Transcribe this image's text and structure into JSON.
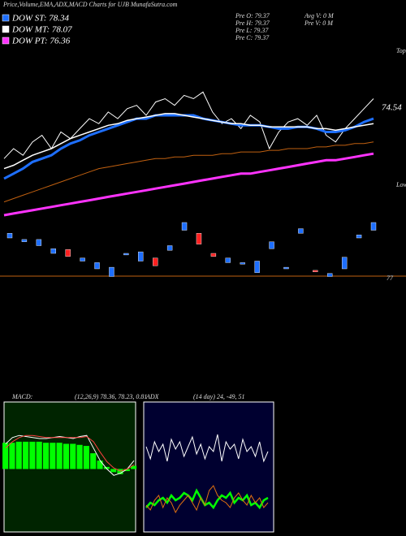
{
  "header": {
    "title": "Price,Volume,EMA,ADX,MACD Charts for UJB MunafaSutra.com"
  },
  "info": {
    "col1": [
      "Pre O: 79.37",
      "Pre H: 79.37",
      "Pre L: 79.37",
      "Pre C: 79.37"
    ],
    "col2": [
      "Avg V: 0 M",
      "Pre V: 0 M"
    ]
  },
  "chart_data": [
    {
      "type": "line",
      "ylim": [
        0,
        100
      ],
      "last_label": "74.54",
      "tops": "Tops",
      "lows": "Lows",
      "series": [
        {
          "color": "#ffffff",
          "width": 1,
          "values": [
            34,
            40,
            36,
            44,
            48,
            40,
            50,
            46,
            52,
            58,
            55,
            62,
            58,
            64,
            66,
            60,
            68,
            70,
            66,
            72,
            70,
            74,
            62,
            55,
            58,
            52,
            60,
            56,
            40,
            50,
            56,
            58,
            54,
            60,
            48,
            44,
            52,
            58,
            64,
            70
          ]
        },
        {
          "name": "DOW ST: 78.34",
          "color": "#1e6fff",
          "width": 3,
          "values": [
            22,
            25,
            28,
            32,
            34,
            36,
            40,
            43,
            45,
            48,
            50,
            52,
            54,
            56,
            58,
            58,
            60,
            60,
            60,
            60,
            60,
            58,
            57,
            56,
            55,
            54,
            54,
            54,
            53,
            52,
            52,
            53,
            53,
            52,
            50,
            50,
            51,
            53,
            56,
            58
          ]
        },
        {
          "name": "DOW MT: 78.07",
          "color": "#ffffff",
          "width": 1.5,
          "values": [
            28,
            30,
            33,
            36,
            38,
            40,
            43,
            46,
            48,
            50,
            52,
            54,
            55,
            57,
            58,
            59,
            60,
            61,
            61,
            60,
            59,
            58,
            57,
            56,
            55,
            55,
            54,
            54,
            53,
            53,
            53,
            53,
            53,
            52,
            52,
            51,
            52,
            53,
            54,
            55
          ]
        },
        {
          "color": "#c06010",
          "width": 1,
          "values": [
            8,
            10,
            12,
            14,
            16,
            18,
            20,
            22,
            24,
            26,
            28,
            29,
            30,
            31,
            32,
            33,
            34,
            34,
            35,
            35,
            36,
            36,
            36,
            37,
            37,
            38,
            38,
            38,
            39,
            39,
            40,
            40,
            40,
            41,
            41,
            42,
            42,
            43,
            43,
            44
          ]
        },
        {
          "name": "DOW PT: 76.36",
          "color": "#ff33ff",
          "width": 3,
          "values": [
            0,
            1,
            2,
            3,
            4,
            5,
            6,
            7,
            8,
            9,
            10,
            11,
            12,
            13,
            14,
            15,
            16,
            17,
            18,
            19,
            20,
            21,
            22,
            23,
            24,
            25,
            25,
            26,
            27,
            28,
            29,
            30,
            31,
            32,
            33,
            33,
            34,
            35,
            36,
            37
          ]
        }
      ]
    },
    {
      "type": "candlestick",
      "ylim": [
        0,
        100
      ],
      "up_color": "#1e6fff",
      "down_color": "#ff2020",
      "level_label": "77",
      "open": [
        60,
        55,
        50,
        40,
        45,
        30,
        20,
        10,
        38,
        30,
        34,
        44,
        70,
        66,
        40,
        28,
        26,
        15,
        46,
        20,
        66,
        18,
        10,
        20,
        60,
        70
      ],
      "close": [
        66,
        58,
        58,
        46,
        36,
        34,
        28,
        22,
        40,
        42,
        24,
        50,
        80,
        52,
        36,
        34,
        28,
        30,
        55,
        22,
        72,
        16,
        14,
        35,
        64,
        80
      ]
    },
    {
      "type": "macd",
      "title": "MACD:",
      "subtitle": "(12,26,9) 78.36, 78.23, 0.81",
      "ylim": [
        -6,
        6
      ],
      "hist_color": "#00ff00",
      "histogram": [
        2.5,
        2.5,
        2.6,
        2.6,
        2.6,
        2.6,
        2.5,
        2.5,
        2.5,
        2.4,
        2.4,
        2.3,
        2.2,
        1.5,
        0.8,
        0.2,
        -0.3,
        -0.5,
        -0.2,
        0.3
      ],
      "series": [
        {
          "color": "#ffffff",
          "values": [
            2.4,
            3,
            3.2,
            3.1,
            3,
            2.9,
            2.9,
            3,
            3.1,
            3,
            2.9,
            3.1,
            3.2,
            2,
            0.8,
            0,
            -0.6,
            -0.4,
            0,
            0.8
          ]
        },
        {
          "color": "#ff4040",
          "values": [
            2,
            2.6,
            3,
            3.2,
            3.2,
            3.1,
            3,
            3,
            3,
            3,
            3,
            3,
            3.1,
            2.6,
            1.6,
            0.7,
            0.1,
            -0.2,
            0,
            0.4
          ]
        }
      ]
    },
    {
      "type": "adx",
      "title": "ADX",
      "subtitle": "(14 day) 24, -49, 51",
      "ylim": [
        0,
        100
      ],
      "series": [
        {
          "color": "#ffffff",
          "width": 1,
          "values": [
            70,
            60,
            74,
            66,
            72,
            58,
            76,
            68,
            74,
            62,
            70,
            78,
            64,
            72,
            60,
            70,
            66,
            80,
            58,
            74,
            68,
            72,
            60,
            76,
            66,
            70,
            62,
            74,
            58,
            66
          ]
        },
        {
          "color": "#00ff00",
          "width": 2.5,
          "values": [
            20,
            24,
            22,
            26,
            28,
            24,
            30,
            26,
            28,
            32,
            30,
            26,
            34,
            28,
            22,
            24,
            20,
            26,
            30,
            28,
            32,
            24,
            28,
            26,
            30,
            22,
            24,
            20,
            26,
            28
          ]
        },
        {
          "color": "#e07010",
          "width": 1,
          "values": [
            22,
            18,
            26,
            30,
            20,
            28,
            24,
            16,
            22,
            26,
            30,
            24,
            18,
            28,
            22,
            34,
            38,
            30,
            26,
            24,
            20,
            28,
            32,
            26,
            22,
            30,
            24,
            28,
            20,
            24
          ]
        }
      ]
    }
  ]
}
